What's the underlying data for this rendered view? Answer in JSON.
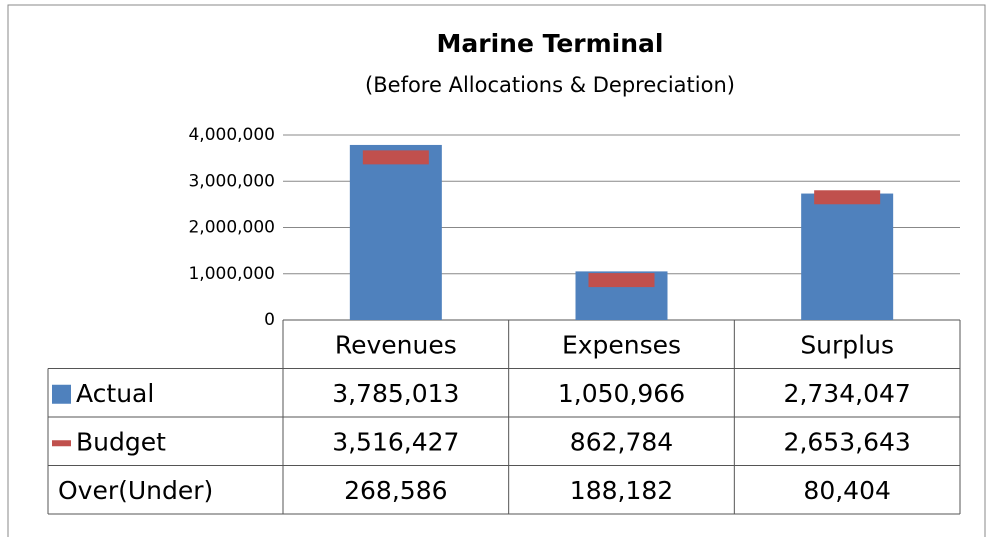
{
  "chart_data": {
    "type": "bar",
    "title": "Marine Terminal",
    "subtitle": "(Before Allocations & Depreciation)",
    "categories": [
      "Revenues",
      "Expenses",
      "Surplus"
    ],
    "series": [
      {
        "name": "Actual",
        "color": "#4f81bd",
        "values": [
          3785013,
          1050966,
          2734047
        ],
        "value_labels": [
          "3,785,013",
          "1,050,966",
          "2,734,047"
        ]
      },
      {
        "name": "Budget",
        "color": "#c0504d",
        "values": [
          3516427,
          862784,
          2653643
        ],
        "value_labels": [
          "3,516,427",
          "862,784",
          "2,653,643"
        ]
      },
      {
        "name": "Over(Under)",
        "values": [
          268586,
          188182,
          80404
        ],
        "value_labels": [
          "268,586",
          "188,182",
          "80,404"
        ]
      }
    ],
    "ylim": [
      0,
      4000000
    ],
    "yticks": [
      0,
      {
        "value": 1000000,
        "label": "1,000,000"
      },
      {
        "value": 2000000,
        "label": "2,000,000"
      },
      {
        "value": 3000000,
        "label": "3,000,000"
      },
      {
        "value": 4000000,
        "label": "4,000,000"
      }
    ],
    "grid": true
  }
}
